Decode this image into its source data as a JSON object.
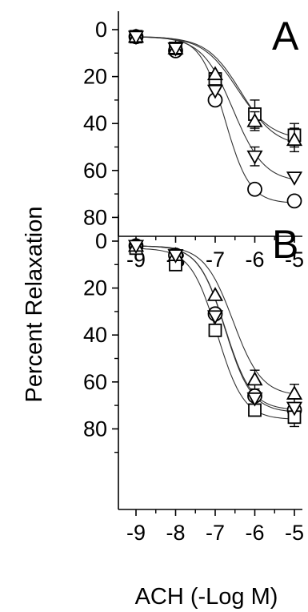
{
  "chart_data": {
    "type": "scatter",
    "ylabel": "Percent Relaxation",
    "xlabel": "ACH (-Log M)",
    "y_axis_inverted": true,
    "panels": [
      {
        "label": "A",
        "x": [
          -9,
          -8,
          -7,
          -6,
          -5
        ],
        "xlim": [
          -9.6,
          -4.6
        ],
        "ylim": [
          0,
          90
        ],
        "yticks": [
          0,
          20,
          40,
          60,
          80
        ],
        "xticks": [
          -9,
          -8,
          -7,
          -6,
          -5
        ],
        "annotation": "**",
        "series": [
          {
            "marker": "circle",
            "values": [
              3,
              9,
              30,
              68,
              73
            ],
            "errors": [
              1,
              1,
              3,
              2,
              3
            ]
          },
          {
            "marker": "square",
            "values": [
              3,
              8,
              21,
              36,
              45
            ],
            "errors": [
              1,
              1,
              2,
              6,
              5
            ]
          },
          {
            "marker": "triangle-up",
            "values": [
              3,
              8,
              19,
              39,
              47
            ],
            "errors": [
              1,
              1,
              2,
              4,
              5
            ]
          },
          {
            "marker": "triangle-down",
            "values": [
              3,
              8,
              26,
              54,
              63
            ],
            "errors": [
              1,
              1,
              2,
              4,
              3
            ]
          }
        ]
      },
      {
        "label": "B",
        "x": [
          -9,
          -8,
          -7,
          -6,
          -5
        ],
        "xlim": [
          -9.6,
          -4.6
        ],
        "ylim": [
          0,
          90
        ],
        "yticks": [
          0,
          20,
          40,
          60,
          80
        ],
        "xticks": [
          -9,
          -8,
          -7,
          -6,
          -5
        ],
        "series": [
          {
            "marker": "circle",
            "values": [
              2,
              6,
              31,
              66,
              72
            ],
            "errors": [
              1,
              1,
              3,
              3,
              3
            ]
          },
          {
            "marker": "square",
            "values": [
              3,
              10,
              38,
              72,
              75
            ],
            "errors": [
              1,
              1,
              3,
              3,
              4
            ]
          },
          {
            "marker": "triangle-up",
            "values": [
              2,
              6,
              23,
              59,
              65
            ],
            "errors": [
              1,
              1,
              3,
              4,
              4
            ]
          },
          {
            "marker": "triangle-down",
            "values": [
              2,
              6,
              32,
              67,
              71
            ],
            "errors": [
              1,
              1,
              3,
              3,
              3
            ]
          }
        ]
      }
    ]
  }
}
